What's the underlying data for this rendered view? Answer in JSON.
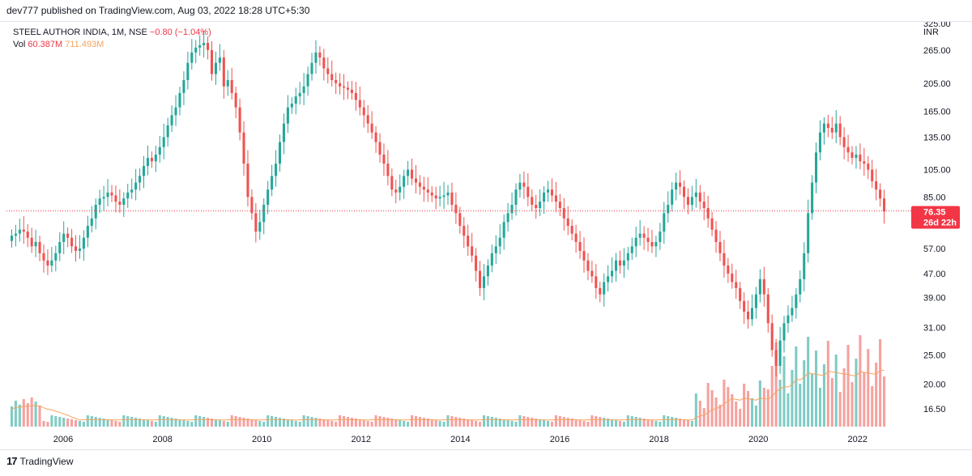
{
  "header": {
    "published": "dev777 published on TradingView.com, Aug 03, 2022 18:28 UTC+5:30"
  },
  "legend": {
    "symbol": "STEEL AUTHOR INDIA, 1M, NSE",
    "change": "−0.80 (−1.04%)",
    "vol_label": "Vol",
    "vol_value": "60.387M",
    "vol_ma": "711.493M"
  },
  "footer": {
    "logo_glyph": "17",
    "brand": "TradingView"
  },
  "colors": {
    "up": "#26a69a",
    "down": "#ef5350",
    "vol_up": "#80cbc4",
    "vol_down": "#f6a19e",
    "vol_ma": "#f7a35c",
    "last_price": "#f23645"
  },
  "chart_data": {
    "type": "candlestick",
    "currency": "INR",
    "log_scale": true,
    "ylim": [
      15.5,
      340
    ],
    "price_ticks": [
      "325.00",
      "265.00",
      "205.00",
      "165.00",
      "135.00",
      "105.00",
      "85.00",
      "57.00",
      "47.00",
      "39.00",
      "31.00",
      "25.00",
      "20.00",
      "16.50"
    ],
    "x_ticks": [
      "2006",
      "2008",
      "2010",
      "2012",
      "2014",
      "2016",
      "2018",
      "2020",
      "2022"
    ],
    "last_price": "76.35",
    "countdown": "26d 22h",
    "last_value": 76.35,
    "grid": false,
    "closes": [
      63,
      64,
      66,
      65,
      62,
      58,
      60,
      55,
      52,
      50,
      52,
      55,
      60,
      64,
      62,
      58,
      56,
      57,
      62,
      68,
      72,
      80,
      84,
      85,
      88,
      86,
      82,
      80,
      84,
      88,
      90,
      95,
      100,
      108,
      115,
      112,
      118,
      125,
      135,
      148,
      160,
      170,
      190,
      210,
      240,
      260,
      270,
      275,
      280,
      265,
      220,
      240,
      250,
      200,
      210,
      190,
      170,
      140,
      110,
      85,
      75,
      65,
      70,
      80,
      90,
      100,
      110,
      130,
      150,
      170,
      175,
      185,
      190,
      200,
      220,
      240,
      260,
      250,
      230,
      220,
      210,
      205,
      200,
      198,
      195,
      190,
      180,
      170,
      160,
      150,
      140,
      130,
      118,
      110,
      100,
      90,
      88,
      92,
      100,
      105,
      98,
      95,
      92,
      90,
      88,
      86,
      84,
      85,
      86,
      88,
      80,
      75,
      68,
      63,
      58,
      54,
      48,
      42,
      46,
      50,
      55,
      58,
      62,
      70,
      75,
      80,
      90,
      95,
      92,
      85,
      80,
      78,
      82,
      88,
      90,
      86,
      82,
      78,
      72,
      68,
      64,
      60,
      56,
      52,
      48,
      46,
      42,
      40,
      44,
      46,
      48,
      52,
      50,
      52,
      55,
      58,
      62,
      64,
      62,
      60,
      58,
      60,
      65,
      75,
      80,
      90,
      95,
      92,
      85,
      80,
      85,
      88,
      82,
      78,
      72,
      66,
      60,
      55,
      50,
      47,
      44,
      42,
      38,
      35,
      33,
      36,
      40,
      45,
      40,
      32,
      26,
      23,
      28,
      32,
      34,
      36,
      40,
      45,
      55,
      75,
      95,
      120,
      140,
      150,
      145,
      140,
      150,
      135,
      125,
      120,
      115,
      118,
      112,
      110,
      105,
      96,
      90,
      84,
      76
    ]
  }
}
